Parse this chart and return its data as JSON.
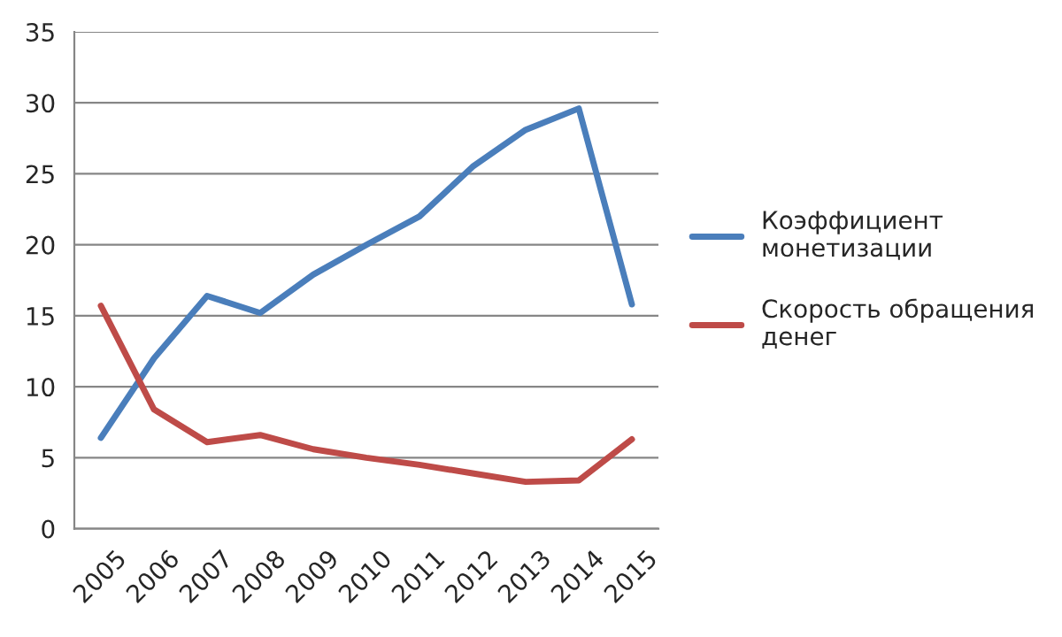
{
  "chart_data": {
    "type": "line",
    "categories": [
      "2005",
      "2006",
      "2007",
      "2008",
      "2009",
      "2010",
      "2011",
      "2012",
      "2013",
      "2014",
      "2015"
    ],
    "series": [
      {
        "name": "Коэффициент монетизации",
        "color": "#4a7ebb",
        "values": [
          6.4,
          12.0,
          16.4,
          15.2,
          17.9,
          20.0,
          22.0,
          25.5,
          28.1,
          29.6,
          15.8
        ]
      },
      {
        "name": "Скорость обращения денег",
        "color": "#be4b48",
        "values": [
          15.7,
          8.4,
          6.1,
          6.6,
          5.6,
          5.0,
          4.5,
          3.9,
          3.3,
          3.4,
          6.3
        ]
      }
    ],
    "ylim": [
      0,
      35
    ],
    "yticks": [
      0,
      5,
      10,
      15,
      20,
      25,
      30,
      35
    ],
    "grid": "y",
    "legend": "right",
    "marker": "none",
    "line_style": "solid"
  }
}
